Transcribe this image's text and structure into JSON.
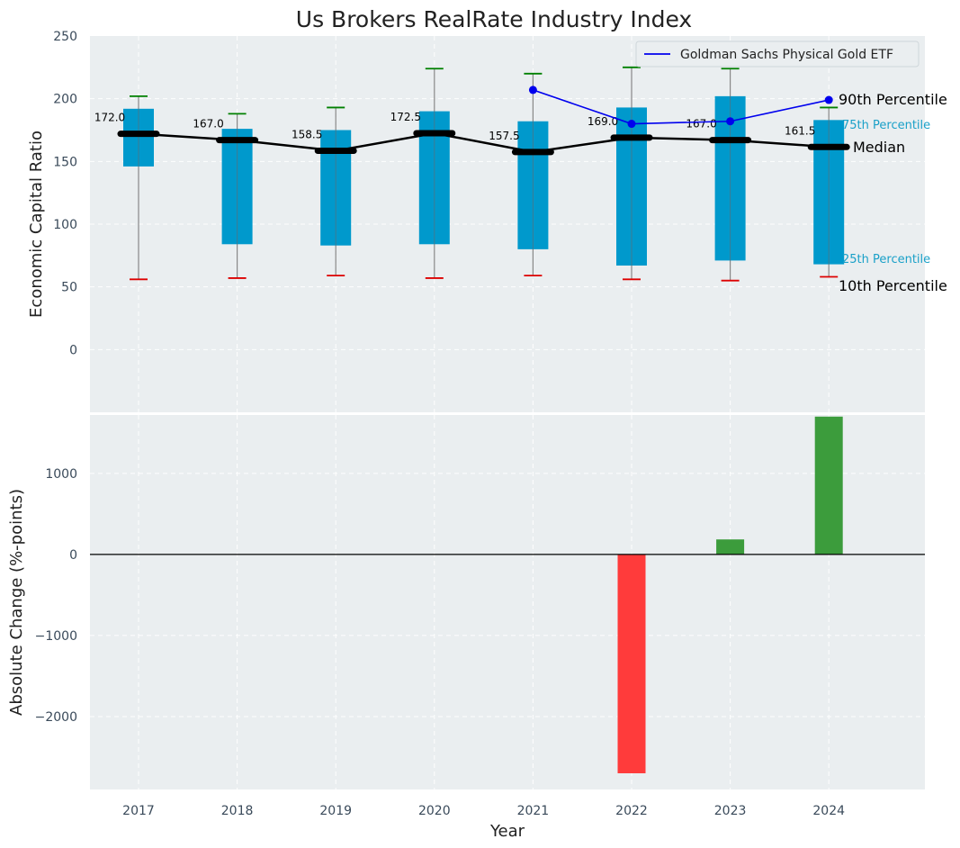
{
  "chart_data": [
    {
      "type": "box",
      "title": "Us Brokers RealRate Industry Index",
      "ylabel": "Economic Capital Ratio",
      "ylim": [
        -50,
        250
      ],
      "yticks": [
        0,
        50,
        100,
        150,
        200,
        250
      ],
      "categories": [
        "2017",
        "2018",
        "2019",
        "2020",
        "2021",
        "2022",
        "2023",
        "2024"
      ],
      "p10": [
        56,
        57,
        59,
        57,
        59,
        56,
        55,
        58
      ],
      "p25": [
        146,
        84,
        83,
        84,
        80,
        67,
        71,
        68
      ],
      "median": [
        172.0,
        167.0,
        158.5,
        172.5,
        157.5,
        169.0,
        167.0,
        161.5
      ],
      "median_labels": [
        "172.0",
        "167.0",
        "158.5",
        "172.5",
        "157.5",
        "169.0",
        "167.0",
        "161.5"
      ],
      "p75": [
        192,
        176,
        175,
        190,
        182,
        193,
        202,
        183
      ],
      "p90": [
        202,
        188,
        193,
        224,
        220,
        225,
        224,
        193
      ],
      "gold_series": {
        "name": "Goldman Sachs Physical Gold ETF",
        "x": [
          "2021",
          "2022",
          "2023",
          "2024"
        ],
        "values": [
          207,
          180,
          182,
          199
        ]
      },
      "annotations": {
        "p90": "90th Percentile",
        "p75": "75th Percentile",
        "median": "Median",
        "p25": "25th Percentile",
        "p10": "10th Percentile"
      },
      "colors": {
        "box": "#0099cc",
        "median": "#000000",
        "p90_cap": "#008000",
        "p10_cap": "#dd0000",
        "gold_line": "#0000ee",
        "background": "#eaeef0"
      },
      "legend_position": "top-right",
      "grid": true
    },
    {
      "type": "bar",
      "xlabel": "Year",
      "ylabel": "Absolute Change (%-points)",
      "ylim": [
        -2900,
        1720
      ],
      "yticks": [
        -2000,
        -1000,
        0,
        1000
      ],
      "ytick_labels": [
        "−2000",
        "−1000",
        "0",
        "1000"
      ],
      "categories": [
        "2017",
        "2018",
        "2019",
        "2020",
        "2021",
        "2022",
        "2023",
        "2024"
      ],
      "values": [
        null,
        null,
        null,
        null,
        null,
        -2700,
        185,
        1700
      ],
      "colors": {
        "positive": "#3c9c3c",
        "negative": "#ff3b3b"
      },
      "grid": true
    }
  ]
}
